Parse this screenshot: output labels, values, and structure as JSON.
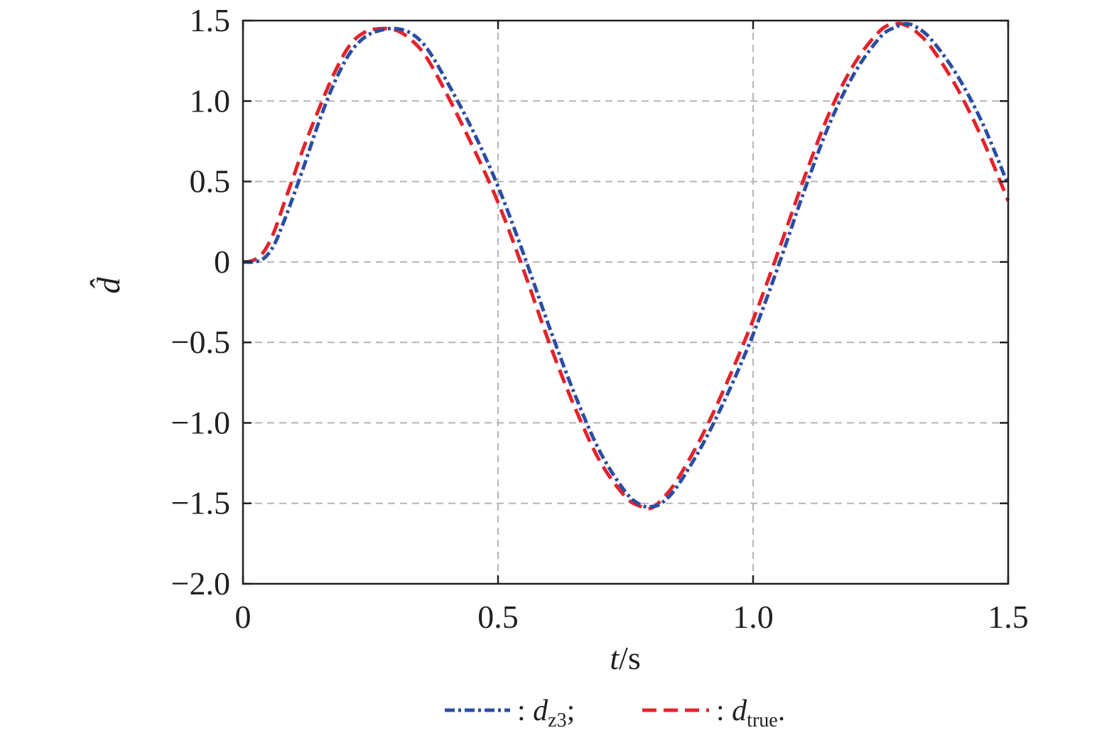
{
  "chart_data": {
    "type": "line",
    "x_label": {
      "var": "t",
      "unit": "/s"
    },
    "y_label": {
      "symbol": "d",
      "accent": "̂"
    },
    "xlim": [
      0,
      1.5
    ],
    "ylim": [
      -2.0,
      1.5
    ],
    "x_ticks": [
      0,
      0.5,
      1.0,
      1.5
    ],
    "x_tick_labels": [
      "0",
      "0.5",
      "1.0",
      "1.5"
    ],
    "y_ticks": [
      1.5,
      1.0,
      0.5,
      0,
      -0.5,
      -1.0,
      -1.5,
      -2.0
    ],
    "y_tick_labels": [
      "1.5",
      "1.0",
      "0.5",
      "0",
      "−0.5",
      "−1.0",
      "−1.5",
      "−2.0"
    ],
    "grid": true,
    "legend_position": "bottom-center",
    "series": [
      {
        "name": "d_z3",
        "legend": {
          "prefix": ": ",
          "base": "d",
          "sub": "z3",
          "suffix": ";"
        },
        "color": "#2b4ea2",
        "style": "dash-dot",
        "x": [
          0,
          0.02,
          0.04,
          0.06,
          0.08,
          0.1,
          0.12,
          0.15,
          0.18,
          0.21,
          0.24,
          0.27,
          0.3,
          0.33,
          0.36,
          0.4,
          0.45,
          0.5,
          0.55,
          0.6,
          0.65,
          0.7,
          0.75,
          0.78,
          0.8,
          0.82,
          0.85,
          0.9,
          0.95,
          1.0,
          1.05,
          1.1,
          1.15,
          1.2,
          1.25,
          1.28,
          1.3,
          1.32,
          1.35,
          1.4,
          1.45,
          1.5
        ],
        "y": [
          0,
          0,
          0.02,
          0.1,
          0.25,
          0.42,
          0.6,
          0.88,
          1.12,
          1.3,
          1.4,
          1.44,
          1.45,
          1.42,
          1.33,
          1.12,
          0.82,
          0.47,
          0.05,
          -0.4,
          -0.82,
          -1.18,
          -1.43,
          -1.51,
          -1.52,
          -1.5,
          -1.4,
          -1.14,
          -0.82,
          -0.45,
          -0.02,
          0.44,
          0.86,
          1.18,
          1.4,
          1.46,
          1.48,
          1.46,
          1.38,
          1.16,
          0.86,
          0.48
        ]
      },
      {
        "name": "d_true",
        "legend": {
          "prefix": ": ",
          "base": "d",
          "sub": "true",
          "suffix": "."
        },
        "color": "#e3232c",
        "style": "dashed",
        "x": [
          0,
          0.02,
          0.04,
          0.06,
          0.08,
          0.1,
          0.12,
          0.15,
          0.18,
          0.21,
          0.24,
          0.27,
          0.3,
          0.33,
          0.36,
          0.4,
          0.45,
          0.5,
          0.55,
          0.6,
          0.65,
          0.7,
          0.75,
          0.78,
          0.8,
          0.82,
          0.85,
          0.9,
          0.95,
          1.0,
          1.05,
          1.1,
          1.15,
          1.2,
          1.25,
          1.28,
          1.3,
          1.32,
          1.35,
          1.4,
          1.45,
          1.5
        ],
        "y": [
          0,
          0.01,
          0.06,
          0.18,
          0.36,
          0.54,
          0.72,
          0.96,
          1.18,
          1.35,
          1.43,
          1.45,
          1.44,
          1.38,
          1.27,
          1.04,
          0.72,
          0.37,
          -0.05,
          -0.5,
          -0.9,
          -1.24,
          -1.46,
          -1.52,
          -1.53,
          -1.48,
          -1.36,
          -1.08,
          -0.74,
          -0.36,
          0.07,
          0.52,
          0.93,
          1.24,
          1.44,
          1.48,
          1.47,
          1.43,
          1.33,
          1.08,
          0.76,
          0.38
        ]
      }
    ]
  }
}
